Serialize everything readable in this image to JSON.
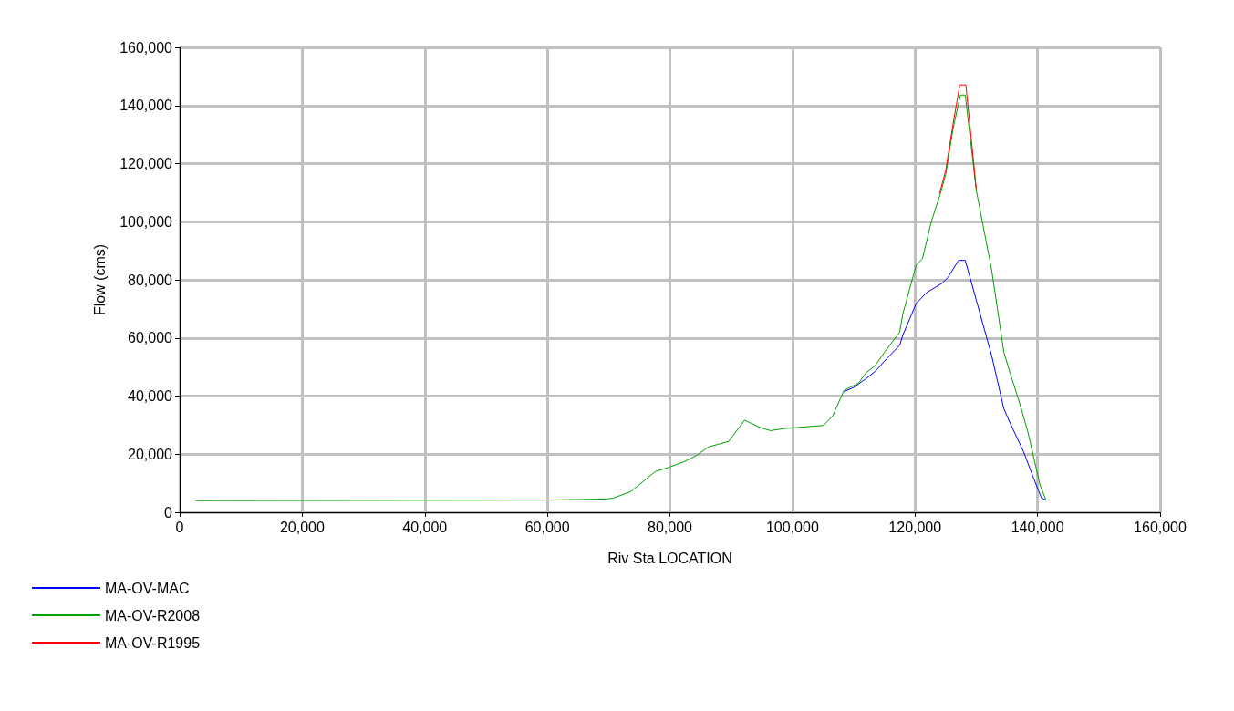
{
  "chart_data": {
    "type": "line",
    "xlabel": "Riv Sta LOCATION",
    "ylabel": "Flow (cms)",
    "xlim": [
      0,
      160000
    ],
    "xticks": [
      {
        "value": 0,
        "label": "0"
      },
      {
        "value": 20000,
        "label": "20,000"
      },
      {
        "value": 40000,
        "label": "40,000"
      },
      {
        "value": 60000,
        "label": "60,000"
      },
      {
        "value": 80000,
        "label": "80,000"
      },
      {
        "value": 100000,
        "label": "100,000"
      },
      {
        "value": 120000,
        "label": "120,000"
      },
      {
        "value": 140000,
        "label": "140,000"
      },
      {
        "value": 160000,
        "label": "160,000"
      }
    ],
    "ylim": [
      0,
      160000
    ],
    "yticks": [
      {
        "value": 0,
        "label": "0"
      },
      {
        "value": 20000,
        "label": "20,000"
      },
      {
        "value": 40000,
        "label": "40,000"
      },
      {
        "value": 60000,
        "label": "60,000"
      },
      {
        "value": 80000,
        "label": "80,000"
      },
      {
        "value": 100000,
        "label": "100,000"
      },
      {
        "value": 120000,
        "label": "120,000"
      },
      {
        "value": 140000,
        "label": "140,000"
      },
      {
        "value": 160000,
        "label": "160,000"
      }
    ],
    "grid": true,
    "legend": "bottom left",
    "marker": "none",
    "line_style": "solid",
    "series": [
      {
        "name": "MA-OV-MAC",
        "color": "#0000ff",
        "x": [
          108400,
          110000,
          112000,
          113500,
          115000,
          117500,
          118000,
          120200,
          121900,
          124400,
          125400,
          127100,
          128200,
          130000,
          132500,
          134500,
          135700,
          137700,
          139400,
          140600,
          141400
        ],
        "values": [
          41500,
          43000,
          46000,
          48500,
          52000,
          57500,
          60900,
          71900,
          75600,
          78800,
          80900,
          86700,
          86700,
          73000,
          54000,
          35600,
          29900,
          20900,
          11500,
          5100,
          4100
        ]
      },
      {
        "name": "MA-OV-R2008",
        "color": "#00a000",
        "x": [
          2600,
          60000,
          69900,
          70900,
          73600,
          77600,
          80000,
          82300,
          84300,
          86300,
          89600,
          92200,
          94700,
          96400,
          98600,
          105100,
          106600,
          108400,
          109300,
          110800,
          112000,
          113500,
          115000,
          117500,
          118000,
          120200,
          121200,
          122700,
          124000,
          125000,
          126200,
          127400,
          128200,
          130000,
          132500,
          134500,
          135700,
          137200,
          138400,
          140400,
          141400
        ],
        "values": [
          4000,
          4200,
          4600,
          5000,
          7100,
          14000,
          15600,
          17400,
          19500,
          22500,
          24400,
          31700,
          29200,
          28100,
          28800,
          29900,
          33300,
          41900,
          42900,
          44500,
          48000,
          50500,
          55000,
          62000,
          68200,
          85100,
          87200,
          100300,
          108700,
          116100,
          131900,
          143600,
          143600,
          110800,
          83500,
          55100,
          46700,
          36700,
          27800,
          9400,
          4100
        ]
      },
      {
        "name": "MA-OV-R1995",
        "color": "#ff0000",
        "x": [
          124000,
          125000,
          126200,
          127300,
          128300,
          130000
        ],
        "values": [
          109700,
          117500,
          133500,
          147100,
          147100,
          111300
        ]
      }
    ]
  }
}
